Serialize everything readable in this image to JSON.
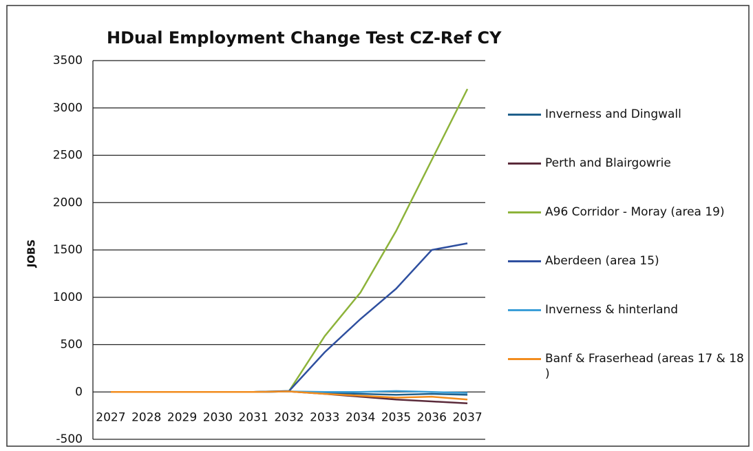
{
  "chart_data": {
    "type": "line",
    "title": "HDual  Employment Change Test CZ-Ref CY",
    "y_label": "JOBS",
    "categories": [
      "2027",
      "2028",
      "2029",
      "2030",
      "2031",
      "2032",
      "2033",
      "2034",
      "2035",
      "2036",
      "2037"
    ],
    "series": [
      {
        "name": "Inverness and Dingwall",
        "color": "#1f5f8b",
        "values": [
          0,
          0,
          0,
          0,
          0,
          5,
          -10,
          -20,
          -30,
          -20,
          -30
        ]
      },
      {
        "name": "Perth and Blairgowrie",
        "color": "#5a2a3a",
        "values": [
          0,
          0,
          0,
          0,
          0,
          5,
          -20,
          -50,
          -80,
          -100,
          -120
        ]
      },
      {
        "name": "A96 Corridor - Moray (area 19)",
        "color": "#8db33a",
        "values": [
          0,
          0,
          0,
          0,
          0,
          10,
          590,
          1050,
          1700,
          2450,
          3200
        ]
      },
      {
        "name": "Aberdeen (area 15)",
        "color": "#2e4f9f",
        "values": [
          0,
          0,
          0,
          0,
          0,
          10,
          420,
          770,
          1090,
          1500,
          1570
        ]
      },
      {
        "name": "Inverness & hinterland",
        "color": "#3b9fd8",
        "values": [
          0,
          0,
          0,
          0,
          0,
          5,
          0,
          0,
          10,
          0,
          -10
        ]
      },
      {
        "name": "Banf & Fraserhead (areas 17 & 18 )",
        "color": "#f28c1e",
        "values": [
          0,
          0,
          0,
          0,
          0,
          5,
          -20,
          -40,
          -60,
          -50,
          -80
        ]
      }
    ],
    "ylim": [
      -500,
      3500
    ],
    "yticks": [
      -500,
      0,
      500,
      1000,
      1500,
      2000,
      2500,
      3000,
      3500
    ],
    "grid": true
  }
}
